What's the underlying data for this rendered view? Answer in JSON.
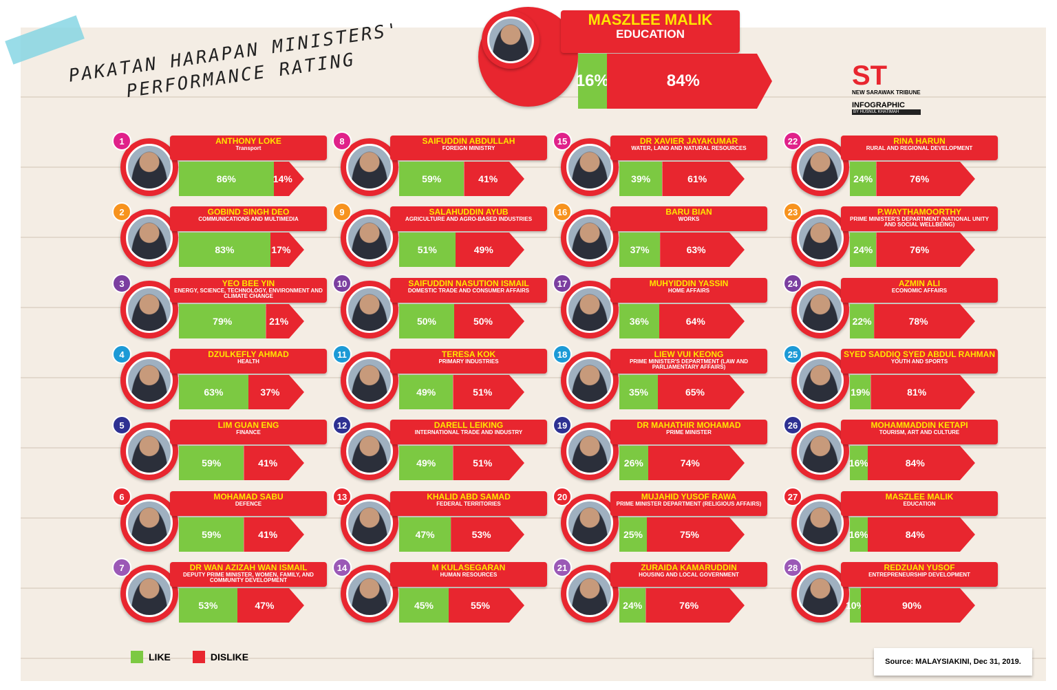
{
  "header": {
    "title_line1": "PAKATAN HARAPAN MINISTERS'",
    "title_line2": "PERFORMANCE RATING",
    "brand": "ST",
    "brand_name": "NEW SARAWAK TRIBUNE",
    "brand_kind": "INFOGRAPHIC",
    "brand_author": "BY HUSNUL KHATIMAH"
  },
  "featured": {
    "name": "MASZLEE MALIK",
    "portfolio": "EDUCATION",
    "like": 16,
    "like_label": "16%",
    "dislike": 84,
    "dislike_label": "84%"
  },
  "ministers": [
    {
      "rank": 1,
      "name": "ANTHONY LOKE",
      "portfolio": "Transport",
      "like": 86,
      "like_label": "86%",
      "dislike": 14,
      "dislike_label": "14%"
    },
    {
      "rank": 2,
      "name": "GOBIND SINGH DEO",
      "portfolio": "COMMUNICATIONS AND MULTIMEDIA",
      "like": 83,
      "like_label": "83%",
      "dislike": 17,
      "dislike_label": "17%"
    },
    {
      "rank": 3,
      "name": "YEO BEE YIN",
      "portfolio": "ENERGY, SCIENCE, TECHNOLOGY, ENVIRONMENT AND CLIMATE CHANGE",
      "like": 79,
      "like_label": "79%",
      "dislike": 21,
      "dislike_label": "21%"
    },
    {
      "rank": 4,
      "name": "DZULKEFLY AHMAD",
      "portfolio": "HEALTH",
      "like": 63,
      "like_label": "63%",
      "dislike": 37,
      "dislike_label": "37%"
    },
    {
      "rank": 5,
      "name": "LIM GUAN ENG",
      "portfolio": "FINANCE",
      "like": 59,
      "like_label": "59%",
      "dislike": 41,
      "dislike_label": "41%"
    },
    {
      "rank": 6,
      "name": "MOHAMAD SABU",
      "portfolio": "DEFENCE",
      "like": 59,
      "like_label": "59%",
      "dislike": 41,
      "dislike_label": "41%"
    },
    {
      "rank": 7,
      "name": "DR WAN AZIZAH WAN ISMAIL",
      "portfolio": "DEPUTY PRIME MINISTER, WOMEN, FAMILY, AND COMMUNITY DEVELOPMENT",
      "like": 53,
      "like_label": "53%",
      "dislike": 47,
      "dislike_label": "47%"
    },
    {
      "rank": 8,
      "name": "SAIFUDDIN ABDULLAH",
      "portfolio": "FOREIGN MINISTRY",
      "like": 59,
      "like_label": "59%",
      "dislike": 41,
      "dislike_label": "41%"
    },
    {
      "rank": 9,
      "name": "SALAHUDDIN AYUB",
      "portfolio": "AGRICULTURE AND AGRO-BASED INDUSTRIES",
      "like": 51,
      "like_label": "51%",
      "dislike": 49,
      "dislike_label": "49%"
    },
    {
      "rank": 10,
      "name": "SAIFUDDIN NASUTION ISMAIL",
      "portfolio": "DOMESTIC TRADE AND CONSUMER AFFAIRS",
      "like": 50,
      "like_label": "50%",
      "dislike": 50,
      "dislike_label": "50%"
    },
    {
      "rank": 11,
      "name": "TERESA KOK",
      "portfolio": "PRIMARY INDUSTRIES",
      "like": 49,
      "like_label": "49%",
      "dislike": 51,
      "dislike_label": "51%"
    },
    {
      "rank": 12,
      "name": "DARELL LEIKING",
      "portfolio": "INTERNATIONAL TRADE AND INDUSTRY",
      "like": 49,
      "like_label": "49%",
      "dislike": 51,
      "dislike_label": "51%"
    },
    {
      "rank": 13,
      "name": "KHALID ABD SAMAD",
      "portfolio": "FEDERAL TERRITORIES",
      "like": 47,
      "like_label": "47%",
      "dislike": 53,
      "dislike_label": "53%"
    },
    {
      "rank": 14,
      "name": "M KULASEGARAN",
      "portfolio": "HUMAN RESOURCES",
      "like": 45,
      "like_label": "45%",
      "dislike": 55,
      "dislike_label": "55%"
    },
    {
      "rank": 15,
      "name": "DR XAVIER JAYAKUMAR",
      "portfolio": "WATER, LAND AND NATURAL RESOURCES",
      "like": 39,
      "like_label": "39%",
      "dislike": 61,
      "dislike_label": "61%"
    },
    {
      "rank": 16,
      "name": "BARU BIAN",
      "portfolio": "WORKS",
      "like": 37,
      "like_label": "37%",
      "dislike": 63,
      "dislike_label": "63%"
    },
    {
      "rank": 17,
      "name": "MUHYIDDIN YASSIN",
      "portfolio": "HOME AFFAIRS",
      "like": 36,
      "like_label": "36%",
      "dislike": 64,
      "dislike_label": "64%"
    },
    {
      "rank": 18,
      "name": "LIEW VUI KEONG",
      "portfolio": "PRIME MINISTER'S DEPARTMENT (LAW AND PARLIAMENTARY AFFAIRS)",
      "like": 35,
      "like_label": "35%",
      "dislike": 65,
      "dislike_label": "65%"
    },
    {
      "rank": 19,
      "name": "DR MAHATHIR MOHAMAD",
      "portfolio": "PRIME MINISTER",
      "like": 26,
      "like_label": "26%",
      "dislike": 74,
      "dislike_label": "74%"
    },
    {
      "rank": 20,
      "name": "MUJAHID YUSOF RAWA",
      "portfolio": "PRIME MINISTER DEPARTMENT (RELIGIOUS AFFAIRS)",
      "like": 25,
      "like_label": "25%",
      "dislike": 75,
      "dislike_label": "75%"
    },
    {
      "rank": 21,
      "name": "ZURAIDA KAMARUDDIN",
      "portfolio": "HOUSING AND LOCAL GOVERNMENT",
      "like": 24,
      "like_label": "24%",
      "dislike": 76,
      "dislike_label": "76%"
    },
    {
      "rank": 22,
      "name": "RINA HARUN",
      "portfolio": "RURAL AND REGIONAL DEVELOPMENT",
      "like": 24,
      "like_label": "24%",
      "dislike": 76,
      "dislike_label": "76%"
    },
    {
      "rank": 23,
      "name": "P.WAYTHAMOORTHY",
      "portfolio": "PRIME MINISTER'S DEPARTMENT (NATIONAL UNITY AND SOCIAL WELLBEING)",
      "like": 24,
      "like_label": "24%",
      "dislike": 76,
      "dislike_label": "76%"
    },
    {
      "rank": 24,
      "name": "AZMIN ALI",
      "portfolio": "ECONOMIC AFFAIRS",
      "like": 22,
      "like_label": "22%",
      "dislike": 78,
      "dislike_label": "78%"
    },
    {
      "rank": 25,
      "name": "SYED SADDIQ SYED ABDUL RAHMAN",
      "portfolio": "YOUTH AND SPORTS",
      "like": 19,
      "like_label": "19%",
      "dislike": 81,
      "dislike_label": "81%"
    },
    {
      "rank": 26,
      "name": "MOHAMMADDIN KETAPI",
      "portfolio": "TOURISM, ART AND CULTURE",
      "like": 16,
      "like_label": "16%",
      "dislike": 84,
      "dislike_label": "84%"
    },
    {
      "rank": 27,
      "name": "MASZLEE MALIK",
      "portfolio": "EDUCATION",
      "like": 16,
      "like_label": "16%",
      "dislike": 84,
      "dislike_label": "84%"
    },
    {
      "rank": 28,
      "name": "REDZUAN YUSOF",
      "portfolio": "ENTREPRENEURSHIP DEVELOPMENT",
      "like": 10,
      "like_label": "10%",
      "dislike": 90,
      "dislike_label": "90%"
    }
  ],
  "legend": {
    "like": "LIKE",
    "dislike": "DISLIKE"
  },
  "source": "Source: MALAYSIAKINI, Dec 31, 2019."
}
